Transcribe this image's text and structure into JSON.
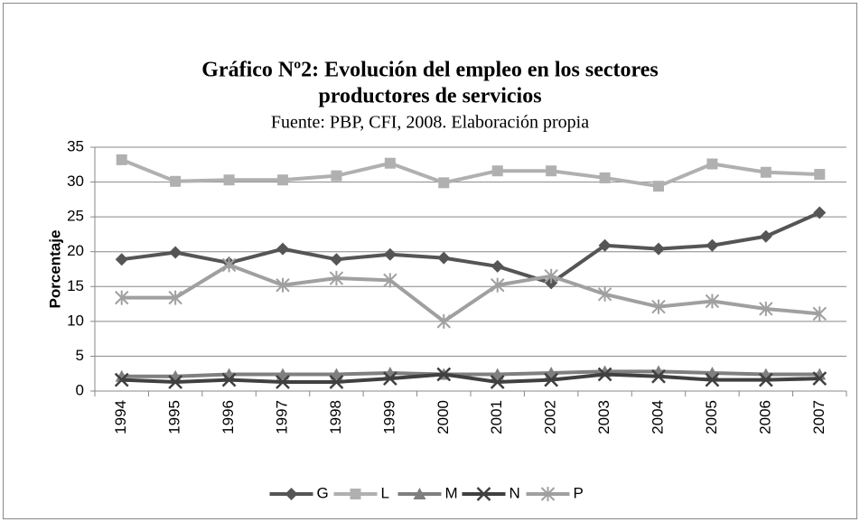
{
  "chart_data": {
    "type": "line",
    "title": [
      "Gráfico Nº2: Evolución del empleo en los sectores",
      "productores de servicios"
    ],
    "subtitle": "Fuente: PBP, CFI, 2008. Elaboración propia",
    "y_label": "Porcentaje",
    "categories": [
      "1994",
      "1995",
      "1996",
      "1997",
      "1998",
      "1999",
      "2000",
      "2001",
      "2002",
      "2003",
      "2004",
      "2005",
      "2006",
      "2007"
    ],
    "series": [
      {
        "name": "G",
        "color": "#555555",
        "marker": "diamond",
        "values": [
          18.9,
          19.9,
          18.4,
          20.4,
          18.9,
          19.6,
          19.1,
          17.9,
          15.5,
          20.9,
          20.4,
          20.9,
          22.2,
          25.6
        ]
      },
      {
        "name": "L",
        "color": "#b0b0b0",
        "marker": "square",
        "values": [
          33.2,
          30.1,
          30.3,
          30.3,
          30.9,
          32.7,
          29.9,
          31.6,
          31.6,
          30.6,
          29.4,
          32.6,
          31.4,
          31.1
        ]
      },
      {
        "name": "M",
        "color": "#7f7f7f",
        "marker": "triangle",
        "values": [
          2.1,
          2.1,
          2.4,
          2.4,
          2.4,
          2.6,
          2.4,
          2.4,
          2.6,
          2.8,
          2.8,
          2.6,
          2.4,
          2.4
        ]
      },
      {
        "name": "N",
        "color": "#404040",
        "marker": "x",
        "values": [
          1.6,
          1.3,
          1.6,
          1.3,
          1.3,
          1.8,
          2.4,
          1.3,
          1.6,
          2.4,
          2.1,
          1.6,
          1.6,
          1.8
        ]
      },
      {
        "name": "P",
        "color": "#a0a0a0",
        "marker": "star",
        "values": [
          13.4,
          13.4,
          18.1,
          15.2,
          16.2,
          15.9,
          10.0,
          15.2,
          16.5,
          13.9,
          12.1,
          12.9,
          11.8,
          11.1
        ]
      }
    ],
    "ylim": [
      0,
      35
    ],
    "yticks": [
      0,
      5,
      10,
      15,
      20,
      25,
      30,
      35
    ],
    "grid": true,
    "legend": "bottom"
  }
}
